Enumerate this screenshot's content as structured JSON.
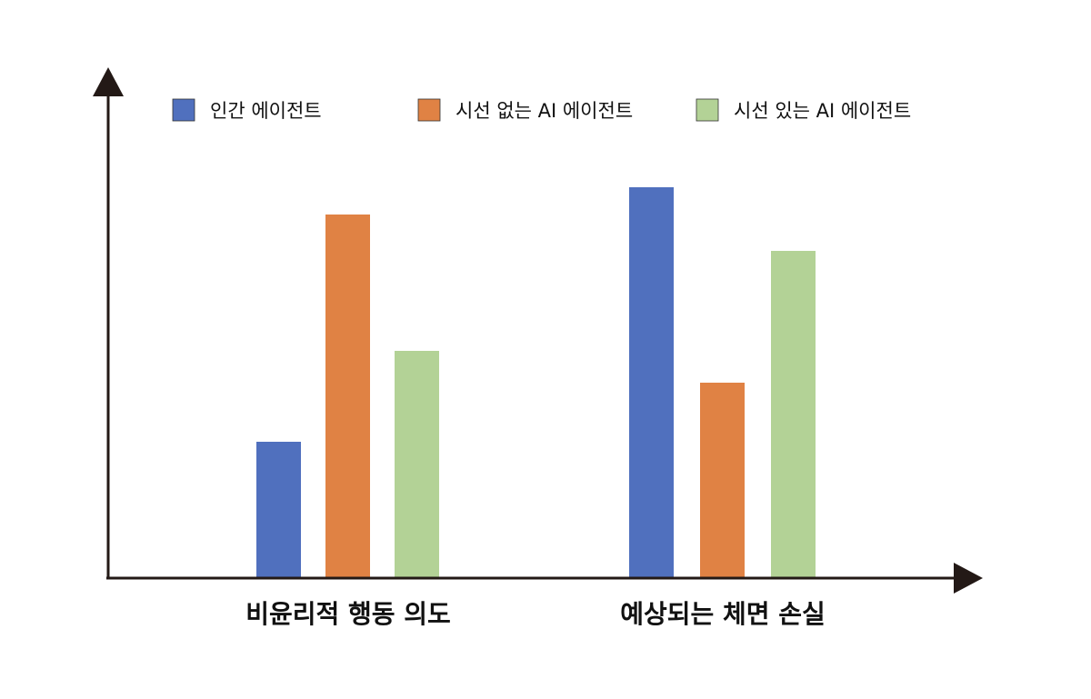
{
  "chart_data": {
    "type": "bar",
    "categories": [
      "비윤리적 행동 의도",
      "예상되는 체면 손실"
    ],
    "series": [
      {
        "name": "인간 에이전트",
        "color": "#5070be",
        "values": [
          1.5,
          4.3
        ]
      },
      {
        "name": "시선 없는 AI 에이전트",
        "color": "#e08244",
        "values": [
          4.0,
          2.15
        ]
      },
      {
        "name": "시선 있는 AI 에이전트",
        "color": "#b3d296",
        "values": [
          2.5,
          3.6
        ]
      }
    ],
    "ylim": [
      0,
      5
    ],
    "grid": false,
    "axis_ticks": false,
    "legend_position": "top",
    "colors": {
      "axis": "#231916",
      "text": "#111111"
    }
  }
}
